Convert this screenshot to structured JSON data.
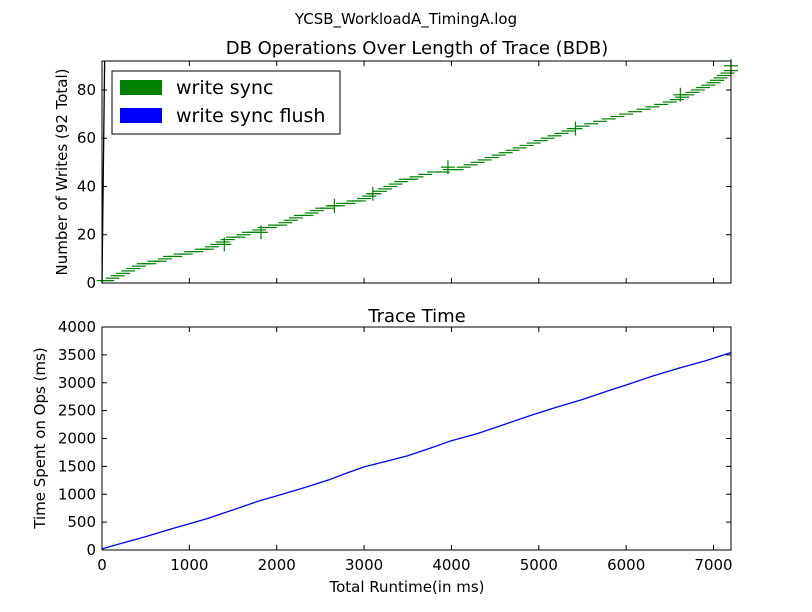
{
  "suptitle": "YCSB_WorkloadA_TimingA.log",
  "chart_data": [
    {
      "type": "scatter",
      "title": "DB Operations Over Length of Trace (BDB)",
      "xlabel": "",
      "ylabel": "Number of Writes (92 Total)",
      "xlim": [
        0,
        7200
      ],
      "ylim": [
        0,
        92
      ],
      "yticks": [
        0,
        20,
        40,
        60,
        80
      ],
      "grid": false,
      "legend": {
        "placement": "top-left",
        "entries": [
          {
            "label": "write sync",
            "color": "#008000"
          },
          {
            "label": "write sync flush",
            "color": "#0000ff"
          }
        ]
      },
      "series": [
        {
          "name": "write sync",
          "color": "#008000",
          "marker": "hline",
          "x": [
            20,
            60,
            120,
            180,
            240,
            300,
            360,
            420,
            480,
            540,
            600,
            660,
            720,
            780,
            840,
            900,
            960,
            1020,
            1080,
            1140,
            1200,
            1260,
            1320,
            1380,
            1440,
            1500,
            1560,
            1620,
            1680,
            1740,
            1800,
            1860,
            1920,
            1980,
            2040,
            2100,
            2160,
            2220,
            2280,
            2340,
            2400,
            2460,
            2520,
            2580,
            2640,
            2700,
            2760,
            2820,
            2880,
            2940,
            3000,
            3060,
            3120,
            3180,
            3240,
            3300,
            3360,
            3420,
            3480,
            3540,
            3600,
            3700,
            3800,
            3900,
            3980,
            4060,
            4140,
            4220,
            4300,
            4380,
            4460,
            4540,
            4620,
            4700,
            4780,
            4860,
            4940,
            5020,
            5100,
            5180,
            5260,
            5340,
            5400,
            5500,
            5600,
            5700,
            5800,
            5900,
            6000,
            6100,
            6200,
            6300,
            6400,
            6500,
            6580,
            6640,
            6700,
            6760,
            6820,
            6880,
            6940,
            7000,
            7040,
            7080,
            7120,
            7160,
            7200
          ],
          "y": [
            1,
            1,
            2,
            3,
            4,
            5,
            6,
            7,
            8,
            8,
            9,
            9,
            10,
            11,
            11,
            12,
            12,
            13,
            13,
            14,
            14,
            15,
            16,
            17,
            18,
            19,
            19,
            20,
            21,
            21,
            22,
            23,
            23,
            24,
            24,
            25,
            26,
            27,
            28,
            28,
            29,
            30,
            31,
            31,
            32,
            32,
            33,
            33,
            34,
            34,
            35,
            36,
            37,
            38,
            39,
            40,
            41,
            42,
            43,
            43,
            44,
            45,
            46,
            46,
            47,
            47,
            48,
            49,
            50,
            51,
            52,
            53,
            54,
            55,
            56,
            57,
            58,
            59,
            60,
            61,
            62,
            63,
            64,
            65,
            66,
            67,
            68,
            69,
            70,
            71,
            72,
            73,
            74,
            75,
            76,
            77,
            78,
            79,
            80,
            81,
            82,
            83,
            84,
            85,
            86,
            87,
            88
          ]
        },
        {
          "name": "write sync flush",
          "color": "#0000ff",
          "marker": "none",
          "x": [],
          "y": []
        }
      ],
      "cross_markers": {
        "x": [
          1400,
          1820,
          2660,
          3100,
          3960,
          5420,
          6620,
          7200
        ],
        "y": [
          16,
          21,
          32,
          37,
          48,
          64,
          78,
          90
        ]
      },
      "black_line": {
        "x": [
          0,
          30
        ],
        "y": [
          0,
          92
        ]
      }
    },
    {
      "type": "line",
      "title": "Trace Time",
      "xlabel": "Total Runtime(in ms)",
      "ylabel": "Time Spent on Ops (ms)",
      "xlim": [
        0,
        7200
      ],
      "ylim": [
        0,
        4000
      ],
      "xticks": [
        0,
        1000,
        2000,
        3000,
        4000,
        5000,
        6000,
        7000
      ],
      "yticks": [
        0,
        500,
        1000,
        1500,
        2000,
        2500,
        3000,
        3500,
        4000
      ],
      "grid": false,
      "series": [
        {
          "color": "#0000ff",
          "x": [
            0,
            200,
            500,
            800,
            1000,
            1200,
            1500,
            1800,
            2000,
            2300,
            2600,
            2800,
            3000,
            3200,
            3500,
            3800,
            4000,
            4300,
            4600,
            4900,
            5200,
            5500,
            5800,
            6000,
            6300,
            6600,
            6900,
            7200
          ],
          "y": [
            20,
            110,
            240,
            380,
            470,
            560,
            720,
            880,
            970,
            1110,
            1260,
            1380,
            1490,
            1570,
            1690,
            1850,
            1960,
            2090,
            2250,
            2410,
            2560,
            2700,
            2860,
            2960,
            3120,
            3260,
            3390,
            3540
          ]
        }
      ]
    }
  ]
}
